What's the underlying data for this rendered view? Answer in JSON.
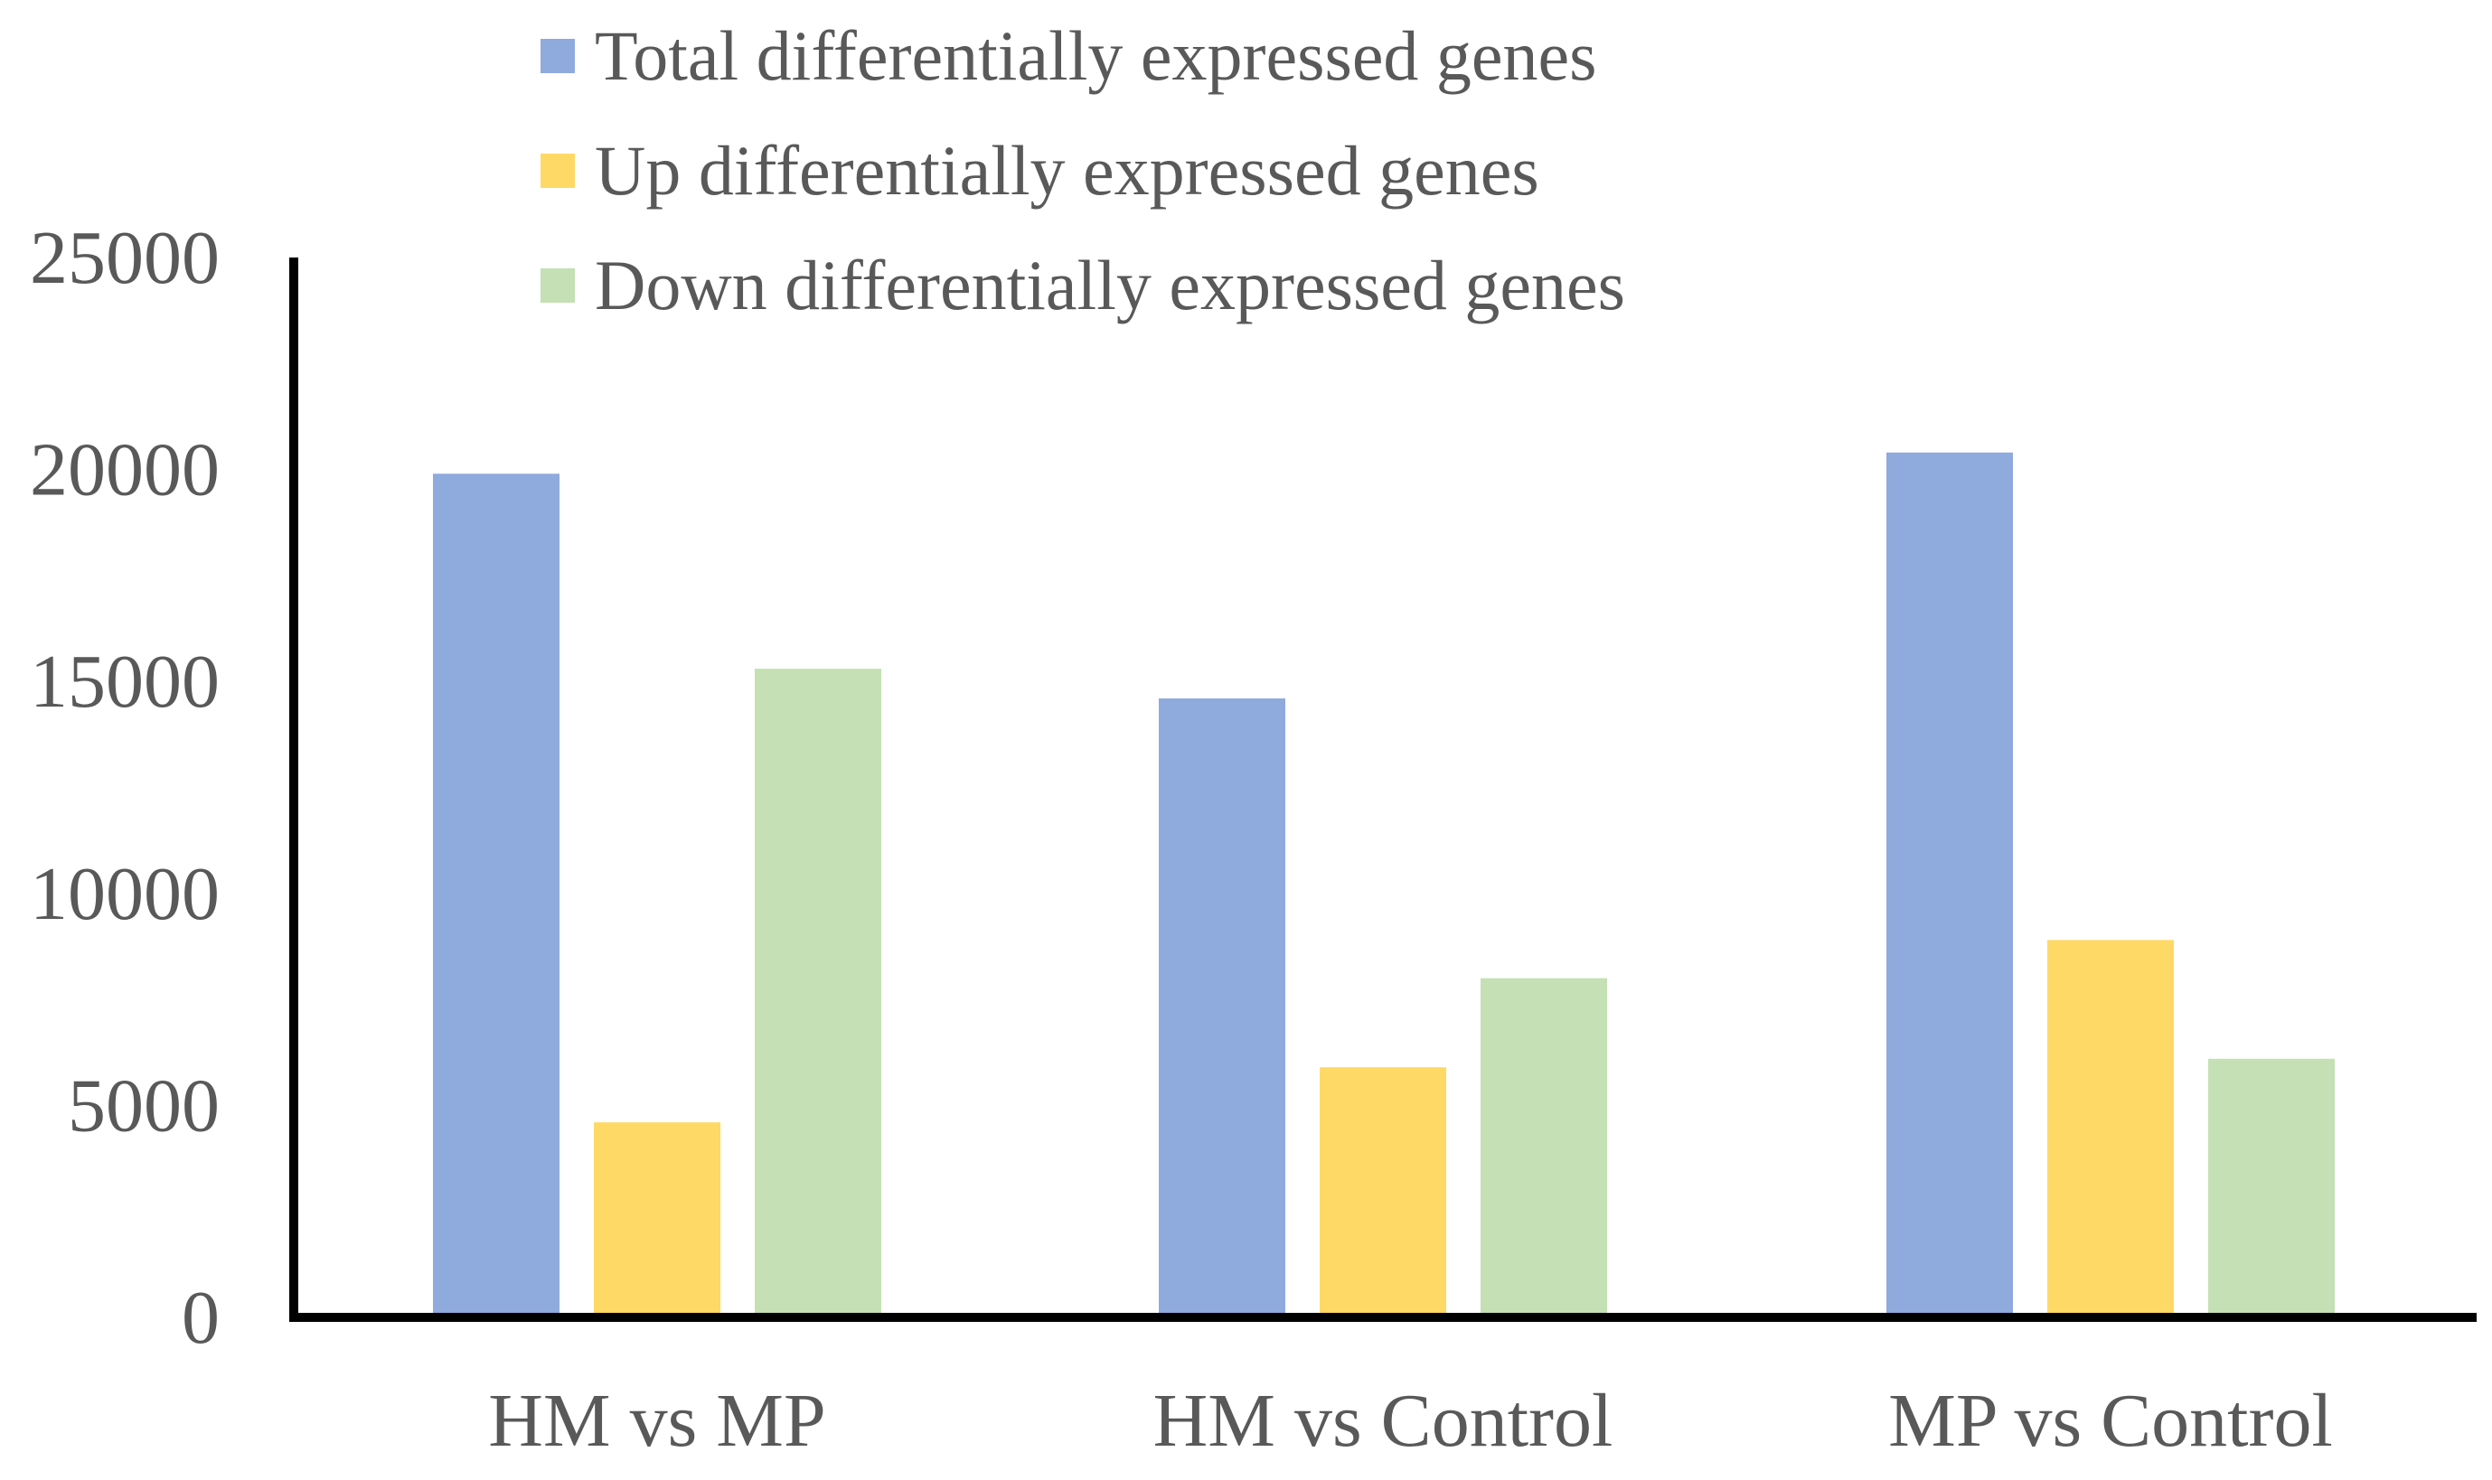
{
  "chart_data": {
    "type": "bar",
    "title": "",
    "xlabel": "",
    "ylabel": "",
    "categories": [
      "HM vs MP",
      "HM vs Control",
      "MP vs Control"
    ],
    "series": [
      {
        "name": "Total differentially expressed genes",
        "color": "#8FAADC",
        "values": [
          19900,
          14600,
          20400
        ]
      },
      {
        "name": "Up differentially expressed genes",
        "color": "#FFD966",
        "values": [
          4600,
          5900,
          8900
        ]
      },
      {
        "name": "Down differentially expressed genes",
        "color": "#C5E0B4",
        "values": [
          15300,
          8000,
          6100
        ]
      }
    ],
    "ylim": [
      0,
      25000
    ],
    "yticks": [
      0,
      5000,
      10000,
      15000,
      20000,
      25000
    ],
    "ytick_labels": [
      "0",
      "5000",
      "10000",
      "15000",
      "20000",
      "25000"
    ],
    "grid": false,
    "legend_position": "top"
  }
}
